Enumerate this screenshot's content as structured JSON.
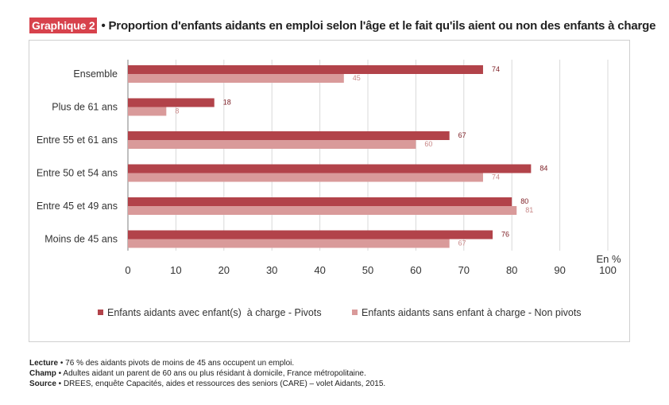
{
  "header": {
    "badge": "Graphique 2",
    "title": "• Proportion d'enfants aidants en emploi selon l'âge et le fait qu'ils aient ou non des enfants à charge"
  },
  "chart_data": {
    "type": "bar",
    "orientation": "horizontal",
    "categories": [
      "Ensemble",
      "Plus de 61 ans",
      "Entre 55 et 61 ans",
      "Entre 50 et 54 ans",
      "Entre 45 et 49 ans",
      "Moins de 45 ans"
    ],
    "series": [
      {
        "name": "Enfants aidants avec enfant(s)  à charge - Pivots",
        "values": [
          74,
          18,
          67,
          84,
          80,
          76
        ],
        "color": "#b2434a"
      },
      {
        "name": "Enfants aidants sans enfant à charge - Non pivots",
        "values": [
          45,
          8,
          60,
          74,
          81,
          67
        ],
        "color": "#d99a9a"
      }
    ],
    "xlim": [
      0,
      100
    ],
    "xticks": [
      0,
      10,
      20,
      30,
      40,
      50,
      60,
      70,
      80,
      90,
      100
    ],
    "xlabel": "En %",
    "grid": "vertical",
    "legend": "bottom"
  },
  "notes": [
    {
      "label": "Lecture",
      "text": " • 76 % des aidants pivots de moins de 45 ans occupent un emploi."
    },
    {
      "label": "Champ",
      "text": " • Adultes aidant un parent de 60 ans ou plus résidant à domicile, France métropolitaine."
    },
    {
      "label": "Source",
      "text": " • DREES, enquête Capacités, aides et ressources des seniors (CARE) – volet Aidants, 2015."
    }
  ]
}
